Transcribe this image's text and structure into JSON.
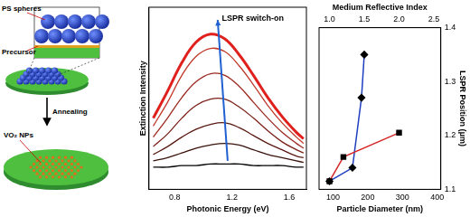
{
  "schematic": {
    "labels": {
      "spheres": "PS spheres",
      "precursor": "Precursor",
      "process": "Annealing",
      "product": "VO₂ NPs"
    }
  },
  "chart_data": [
    {
      "type": "line",
      "x": [
        0.65,
        0.75,
        0.85,
        0.95,
        1.05,
        1.15,
        1.25,
        1.35,
        1.45,
        1.55,
        1.65,
        1.7
      ],
      "series": [
        {
          "color": "#e0201c",
          "values": [
            0.45,
            0.62,
            0.8,
            0.93,
            0.98,
            0.95,
            0.85,
            0.72,
            0.58,
            0.46,
            0.36,
            0.32
          ]
        },
        {
          "color": "#c0392b",
          "values": [
            0.4,
            0.55,
            0.72,
            0.84,
            0.89,
            0.87,
            0.78,
            0.66,
            0.53,
            0.42,
            0.33,
            0.29
          ]
        },
        {
          "color": "#9b2a20",
          "values": [
            0.33,
            0.45,
            0.58,
            0.68,
            0.73,
            0.72,
            0.65,
            0.55,
            0.45,
            0.36,
            0.29,
            0.26
          ]
        },
        {
          "color": "#7a2218",
          "values": [
            0.27,
            0.35,
            0.45,
            0.53,
            0.57,
            0.57,
            0.52,
            0.45,
            0.37,
            0.3,
            0.25,
            0.23
          ]
        },
        {
          "color": "#5a1a12",
          "values": [
            0.22,
            0.27,
            0.33,
            0.38,
            0.41,
            0.42,
            0.39,
            0.34,
            0.29,
            0.25,
            0.21,
            0.2
          ]
        },
        {
          "color": "#3a120c",
          "values": [
            0.18,
            0.2,
            0.23,
            0.26,
            0.28,
            0.29,
            0.28,
            0.25,
            0.22,
            0.2,
            0.18,
            0.17
          ]
        },
        {
          "color": "#000000",
          "values": [
            0.14,
            0.14,
            0.15,
            0.15,
            0.16,
            0.16,
            0.16,
            0.15,
            0.15,
            0.15,
            0.14,
            0.14
          ]
        }
      ],
      "xlim": [
        0.62,
        1.72
      ],
      "xticks": [
        0.8,
        1.2,
        1.6
      ],
      "ylim": [
        0,
        1.15
      ],
      "x_label": "Photonic Energy (eV)",
      "y_label": "Extinction Intensity",
      "tick_labels": "x",
      "grid": false,
      "annotations": [
        {
          "text": "LSPR switch-on",
          "x": 1.13,
          "y": 1.08,
          "arrow": {
            "from": [
              1.17,
              0.18
            ],
            "to": [
              1.1,
              1.07
            ]
          }
        }
      ]
    },
    {
      "type": "line",
      "x_label": "Particle Diameter (nm)",
      "x2_label": "Medium Reflective Index",
      "y_label": "LSPR Position (μm)",
      "xlim": [
        60,
        410
      ],
      "xticks": [
        100,
        200,
        300,
        400
      ],
      "x2lim": [
        0.85,
        2.6
      ],
      "x2ticks": [
        {
          "value": 1,
          "label": "1.0"
        },
        {
          "value": 1.5,
          "label": "1.5"
        },
        {
          "value": 2,
          "label": "2.0"
        },
        {
          "value": 2.5,
          "label": "2.5"
        }
      ],
      "ylim": [
        1.1,
        1.4
      ],
      "yticks": [
        1.1,
        1.2,
        1.3,
        1.4
      ],
      "grid": false,
      "series": [
        {
          "color": "#d62728",
          "marker": "square",
          "axis": "x",
          "x": [
            90,
            130,
            290
          ],
          "values": [
            1.115,
            1.16,
            1.205
          ]
        },
        {
          "color": "#1f3fbf",
          "marker": "diamond",
          "axis": "x2",
          "x": [
            1.0,
            1.33,
            1.46,
            1.5
          ],
          "values": [
            1.115,
            1.14,
            1.27,
            1.35
          ]
        }
      ]
    }
  ]
}
